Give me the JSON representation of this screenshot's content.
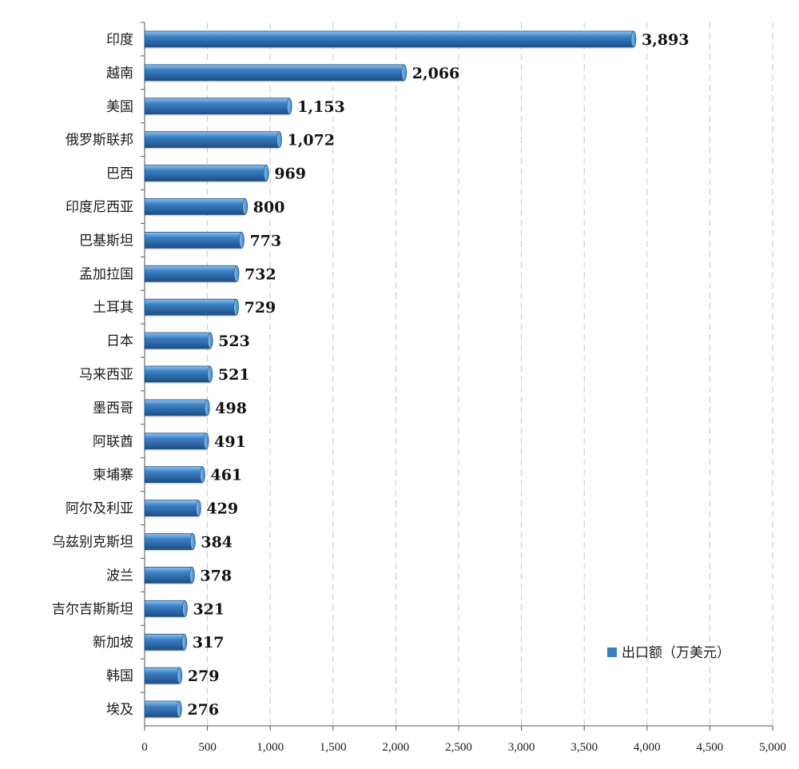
{
  "chart_data": {
    "type": "bar",
    "orientation": "horizontal",
    "title": "",
    "xlabel": "",
    "ylabel": "",
    "categories": [
      "印度",
      "越南",
      "美国",
      "俄罗斯联邦",
      "巴西",
      "印度尼西亚",
      "巴基斯坦",
      "孟加拉国",
      "土耳其",
      "日本",
      "马来西亚",
      "墨西哥",
      "阿联酋",
      "柬埔寨",
      "阿尔及利亚",
      "乌兹别克斯坦",
      "波兰",
      "吉尔吉斯斯坦",
      "新加坡",
      "韩国",
      "埃及"
    ],
    "series": [
      {
        "name": "出口额（万美元）",
        "values": [
          3893,
          2066,
          1153,
          1072,
          969,
          800,
          773,
          732,
          729,
          523,
          521,
          498,
          491,
          461,
          429,
          384,
          378,
          321,
          317,
          279,
          276
        ],
        "value_labels": [
          "3,893",
          "2,066",
          "1,153",
          "1,072",
          "969",
          "800",
          "773",
          "732",
          "729",
          "523",
          "521",
          "498",
          "491",
          "461",
          "429",
          "384",
          "378",
          "321",
          "317",
          "279",
          "276"
        ]
      }
    ],
    "xlim": [
      0,
      5000
    ],
    "xticks": [
      0,
      500,
      1000,
      1500,
      2000,
      2500,
      3000,
      3500,
      4000,
      4500,
      5000
    ],
    "xtick_labels": [
      "0",
      "500",
      "1,000",
      "1,500",
      "2,000",
      "2,500",
      "3,000",
      "3,500",
      "4,000",
      "4,500",
      "5,000"
    ],
    "grid": "vertical-dashed",
    "legend_position": "bottom-right",
    "colors": {
      "bar": "#3a7fc4",
      "bar_light": "#8fc3ee",
      "bar_dark": "#1f4f85",
      "grid": "#c8c8c8",
      "axis": "#555555"
    }
  }
}
